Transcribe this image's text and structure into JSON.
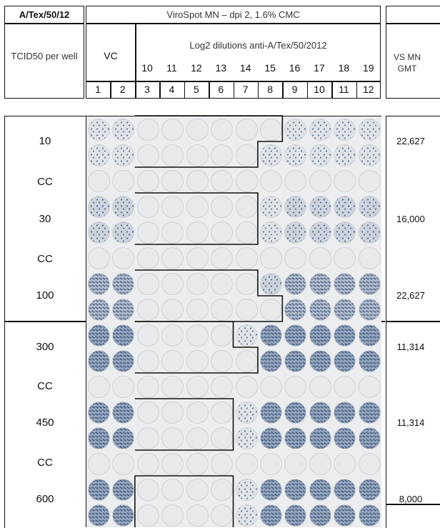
{
  "strain": "A/Tex/50/12",
  "assay_title": "ViroSpot MN – dpi  2, 1.6% CMC",
  "tcid50_label": "TCID50 per well",
  "vc_label": "VC",
  "dilutions_title": "Log2 dilutions anti-A/Tex/50/2012",
  "dilutions": [
    "10",
    "11",
    "12",
    "13",
    "14",
    "15",
    "16",
    "17",
    "18",
    "19"
  ],
  "columns": [
    "1",
    "2",
    "3",
    "4",
    "5",
    "6",
    "7",
    "8",
    "9",
    "10",
    "11",
    "12"
  ],
  "gmt_label": "VS MN GMT",
  "rows": [
    {
      "label": "10",
      "gmt": "22,627"
    },
    {
      "label": "CC",
      "gmt": ""
    },
    {
      "label": "30",
      "gmt": "16,000"
    },
    {
      "label": "CC",
      "gmt": ""
    },
    {
      "label": "100",
      "gmt": "22,627"
    },
    {
      "label": "300",
      "gmt": "11,314"
    },
    {
      "label": "CC",
      "gmt": ""
    },
    {
      "label": "450",
      "gmt": "11,314"
    },
    {
      "label": "CC",
      "gmt": ""
    },
    {
      "label": "600",
      "gmt": "8,000"
    }
  ],
  "well_intensity_grid": [
    [
      1,
      1,
      0,
      0,
      0,
      0,
      0,
      0,
      1,
      1,
      1,
      1
    ],
    [
      1,
      1,
      0,
      0,
      0,
      0,
      0,
      1,
      1,
      1,
      1,
      1
    ],
    [
      0,
      0,
      0,
      0,
      0,
      0,
      0,
      0,
      0,
      0,
      0,
      0
    ],
    [
      2,
      2,
      0,
      0,
      0,
      0,
      0,
      1,
      2,
      2,
      2,
      2
    ],
    [
      2,
      2,
      0,
      0,
      0,
      0,
      0,
      1,
      2,
      2,
      2,
      2
    ],
    [
      0,
      0,
      0,
      0,
      0,
      0,
      0,
      0,
      0,
      0,
      0,
      0
    ],
    [
      3,
      3,
      0,
      0,
      0,
      0,
      0,
      2,
      3,
      3,
      3,
      3
    ],
    [
      3,
      3,
      0,
      0,
      0,
      0,
      0,
      0,
      3,
      3,
      3,
      3
    ],
    [
      4,
      4,
      0,
      0,
      0,
      0,
      1,
      4,
      4,
      4,
      4,
      4
    ],
    [
      4,
      4,
      0,
      0,
      0,
      0,
      0,
      4,
      4,
      4,
      4,
      4
    ],
    [
      0,
      0,
      0,
      0,
      0,
      0,
      0,
      0,
      0,
      0,
      0,
      0
    ],
    [
      4,
      4,
      0,
      0,
      0,
      0,
      1,
      4,
      4,
      4,
      4,
      4
    ],
    [
      4,
      4,
      0,
      0,
      0,
      0,
      1,
      4,
      4,
      4,
      4,
      4
    ],
    [
      0,
      0,
      0,
      0,
      0,
      0,
      0,
      0,
      0,
      0,
      0,
      0
    ],
    [
      4,
      4,
      0,
      0,
      0,
      0,
      1,
      4,
      4,
      4,
      4,
      4
    ],
    [
      4,
      4,
      0,
      0,
      0,
      0,
      1,
      4,
      4,
      4,
      4,
      4
    ]
  ]
}
